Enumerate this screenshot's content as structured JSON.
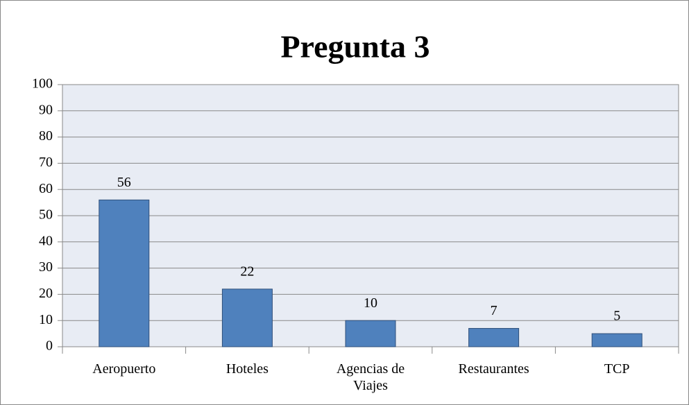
{
  "chart_data": {
    "type": "bar",
    "title": "Pregunta 3",
    "categories": [
      "Aeropuerto",
      "Hoteles",
      "Agencias de Viajes",
      "Restaurantes",
      "TCP"
    ],
    "values": [
      56,
      22,
      10,
      7,
      5
    ],
    "color": "#4f81bd",
    "ylim": [
      0,
      100
    ],
    "yticks": [
      0,
      10,
      20,
      30,
      40,
      50,
      60,
      70,
      80,
      90,
      100
    ],
    "grid": true
  }
}
